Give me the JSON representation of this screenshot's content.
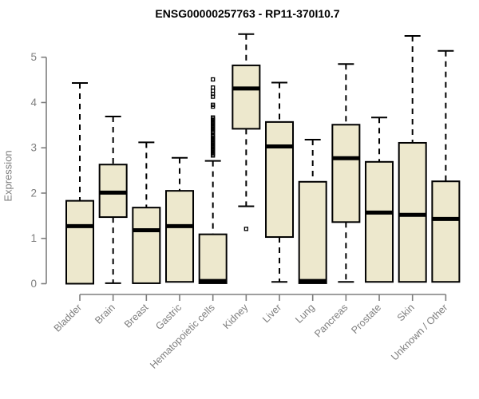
{
  "chart_data": {
    "type": "boxplot",
    "title": "ENSG00000257763 - RP11-370I10.7",
    "ylabel": "Expression",
    "xlabel": "",
    "ylim": [
      0,
      5.6
    ],
    "yticks": [
      0,
      1,
      2,
      3,
      4,
      5
    ],
    "grid": false,
    "legend": null,
    "categories": [
      "Bladder",
      "Brain",
      "Breast",
      "Gastric",
      "Hematopoietic cells",
      "Kidney",
      "Liver",
      "Lung",
      "Pancreas",
      "Prostate",
      "Skin",
      "Unknown / Other"
    ],
    "boxes": [
      {
        "category": "Bladder",
        "whisker_low": null,
        "q1": 0.0,
        "median": 1.27,
        "q3": 1.83,
        "whisker_high": 4.43,
        "outliers": []
      },
      {
        "category": "Brain",
        "whisker_low": 0.01,
        "q1": 1.47,
        "median": 2.01,
        "q3": 2.63,
        "whisker_high": 3.69,
        "outliers": []
      },
      {
        "category": "Breast",
        "whisker_low": null,
        "q1": 0.01,
        "median": 1.18,
        "q3": 1.68,
        "whisker_high": 3.12,
        "outliers": []
      },
      {
        "category": "Gastric",
        "whisker_low": null,
        "q1": 0.04,
        "median": 1.27,
        "q3": 2.05,
        "whisker_high": 2.78,
        "outliers": []
      },
      {
        "category": "Hematopoietic cells",
        "whisker_low": null,
        "q1": 0.01,
        "median": 0.06,
        "q3": 1.09,
        "whisker_high": 2.71,
        "outliers": [
          4.51,
          4.33,
          4.26,
          4.19,
          4.13,
          3.95,
          3.91,
          3.67,
          3.64,
          3.61,
          3.58,
          3.55,
          3.52,
          3.49,
          3.46,
          3.43,
          3.4,
          3.37,
          3.34,
          3.28,
          3.25,
          3.22,
          3.19,
          3.16,
          3.13,
          3.1,
          3.07,
          3.04,
          3.01,
          2.98,
          2.95,
          2.92,
          2.89,
          2.86,
          2.83
        ]
      },
      {
        "category": "Kidney",
        "whisker_low": 1.71,
        "q1": 3.42,
        "median": 4.31,
        "q3": 4.82,
        "whisker_high": 5.51,
        "outliers": [
          1.21
        ]
      },
      {
        "category": "Liver",
        "whisker_low": 0.04,
        "q1": 1.03,
        "median": 3.03,
        "q3": 3.57,
        "whisker_high": 4.44,
        "outliers": []
      },
      {
        "category": "Lung",
        "whisker_low": null,
        "q1": 0.01,
        "median": 0.06,
        "q3": 2.25,
        "whisker_high": 3.18,
        "outliers": []
      },
      {
        "category": "Pancreas",
        "whisker_low": 0.04,
        "q1": 1.36,
        "median": 2.77,
        "q3": 3.51,
        "whisker_high": 4.85,
        "outliers": []
      },
      {
        "category": "Prostate",
        "whisker_low": null,
        "q1": 0.04,
        "median": 1.57,
        "q3": 2.69,
        "whisker_high": 3.67,
        "outliers": []
      },
      {
        "category": "Skin",
        "whisker_low": null,
        "q1": 0.04,
        "median": 1.52,
        "q3": 3.11,
        "whisker_high": 5.47,
        "outliers": []
      },
      {
        "category": "Unknown / Other",
        "whisker_low": null,
        "q1": 0.04,
        "median": 1.43,
        "q3": 2.26,
        "whisker_high": 5.14,
        "outliers": []
      }
    ],
    "colors": {
      "box_fill": "#EDE8CD",
      "box_stroke": "#000000",
      "median": "#000000",
      "whisker": "#000000",
      "axis": "#7E7E7E",
      "tick_label": "#7E7E7E",
      "title": "#000000"
    }
  }
}
